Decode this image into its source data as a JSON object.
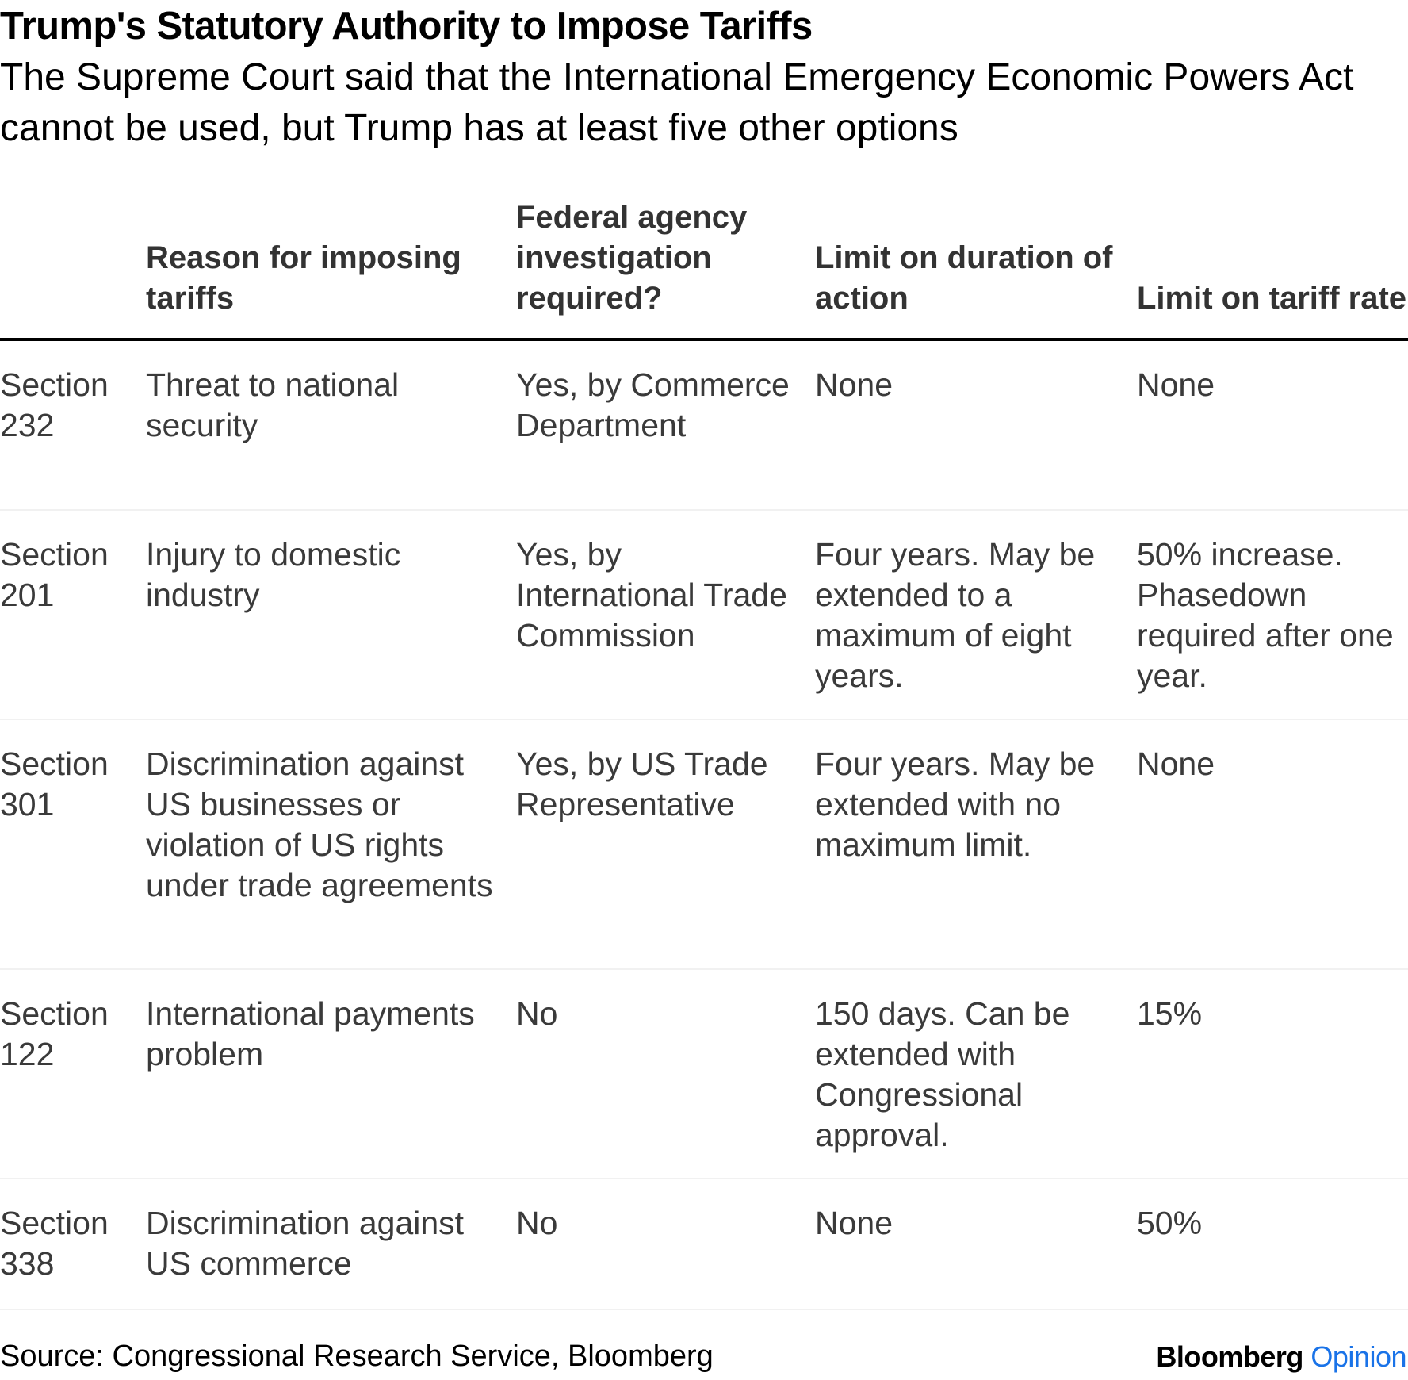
{
  "header": {
    "title": "Trump's Statutory Authority to Impose Tariffs",
    "subtitle": "The Supreme Court said that the International Emergency Economic Powers Act cannot be used, but Trump has at least five other options"
  },
  "table": {
    "columns": [
      "",
      "Reason for imposing tariffs",
      "Federal agency investigation required?",
      "Limit on duration of action",
      "Limit on tariff rate"
    ],
    "rows": [
      {
        "section": "Section 232",
        "reason": "Threat to national security",
        "investigation": "Yes, by Commerce Department",
        "duration": "None",
        "rate": "None"
      },
      {
        "section": "Section 201",
        "reason": "Injury to domestic industry",
        "investigation": "Yes, by International Trade Commission",
        "duration": "Four years. May be extended to a maximum of eight years.",
        "rate": "50% increase. Phasedown required after one year."
      },
      {
        "section": "Section 301",
        "reason": "Discrimination against US businesses or violation of US rights under trade agreements",
        "investigation": "Yes, by US Trade Representative",
        "duration": "Four years. May be extended with no maximum limit.",
        "rate": "None"
      },
      {
        "section": "Section 122",
        "reason": "International payments problem",
        "investigation": "No",
        "duration": "150 days. Can be extended with Congressional approval.",
        "rate": "15%"
      },
      {
        "section": "Section 338",
        "reason": "Discrimination against US commerce",
        "investigation": "No",
        "duration": "None",
        "rate": "50%"
      }
    ]
  },
  "footer": {
    "source": "Source: Congressional Research Service, Bloomberg",
    "brand_main": "Bloomberg",
    "brand_sub": "Opinion"
  },
  "colors": {
    "header_text": "#333333",
    "body_text": "#3a3a3a",
    "rule": "#000000",
    "row_divider": "#f1f1f1",
    "brand_accent": "#1a73e8"
  }
}
